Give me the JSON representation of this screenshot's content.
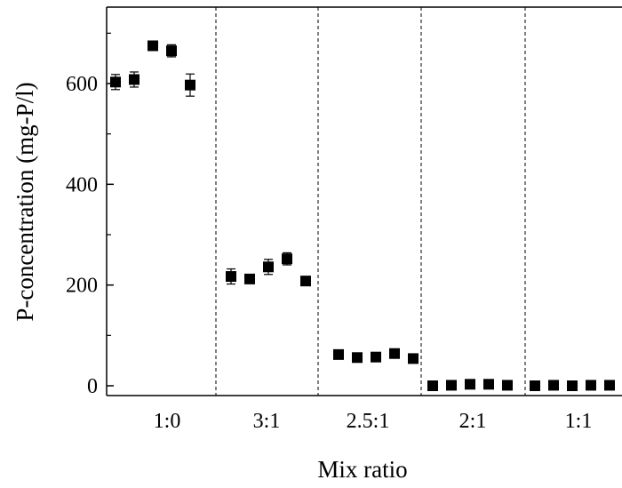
{
  "chart_data": {
    "type": "scatter",
    "xlabel": "Mix ratio",
    "ylabel": "P-concentration (mg-P/l)",
    "categories": [
      "1:0",
      "3:1",
      "2.5:1",
      "2:1",
      "1:1"
    ],
    "ylim": [
      -20,
      750
    ],
    "yticks": [
      0,
      200,
      400,
      600
    ],
    "grid": false,
    "separators": "dashed vertical lines between categories",
    "points_per_category": 5,
    "series": [
      {
        "values": [
          [
            603,
            608,
            675,
            665,
            597
          ],
          [
            217,
            212,
            236,
            252,
            208
          ],
          [
            62,
            56,
            57,
            64,
            54
          ],
          [
            0,
            1,
            3,
            3,
            1
          ],
          [
            0,
            1,
            0,
            1,
            1
          ]
        ],
        "errors": [
          [
            15,
            15,
            5,
            12,
            22
          ],
          [
            15,
            5,
            15,
            12,
            5
          ],
          [
            5,
            5,
            5,
            5,
            5
          ],
          [
            3,
            3,
            3,
            3,
            3
          ],
          [
            3,
            3,
            3,
            3,
            3
          ]
        ]
      }
    ]
  }
}
